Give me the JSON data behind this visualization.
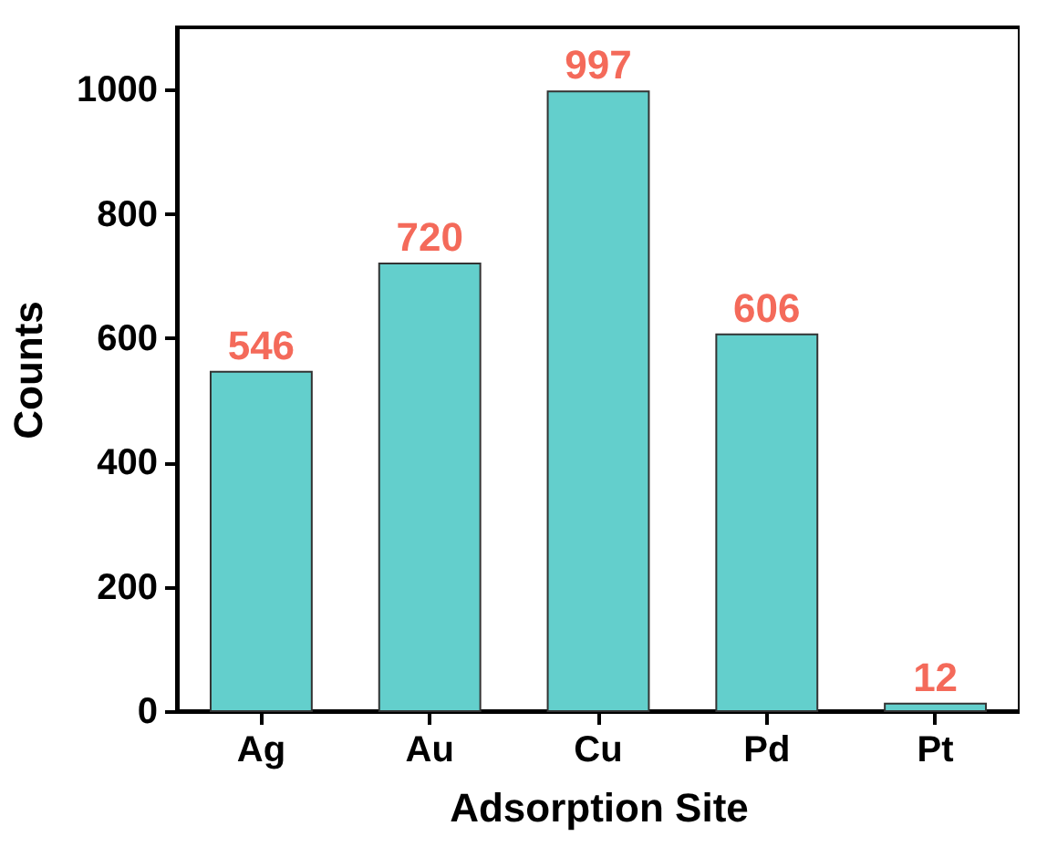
{
  "chart_data": {
    "type": "bar",
    "xlabel": "Adsorption Site",
    "ylabel": "Counts",
    "categories": [
      "Ag",
      "Au",
      "Cu",
      "Pd",
      "Pt"
    ],
    "values": [
      546,
      720,
      997,
      606,
      12
    ],
    "color": "#63cfcc",
    "ylim": [
      0,
      1100
    ],
    "yticks": [
      0,
      200,
      400,
      600,
      800,
      1000
    ],
    "data_labels": true,
    "grid": false
  }
}
